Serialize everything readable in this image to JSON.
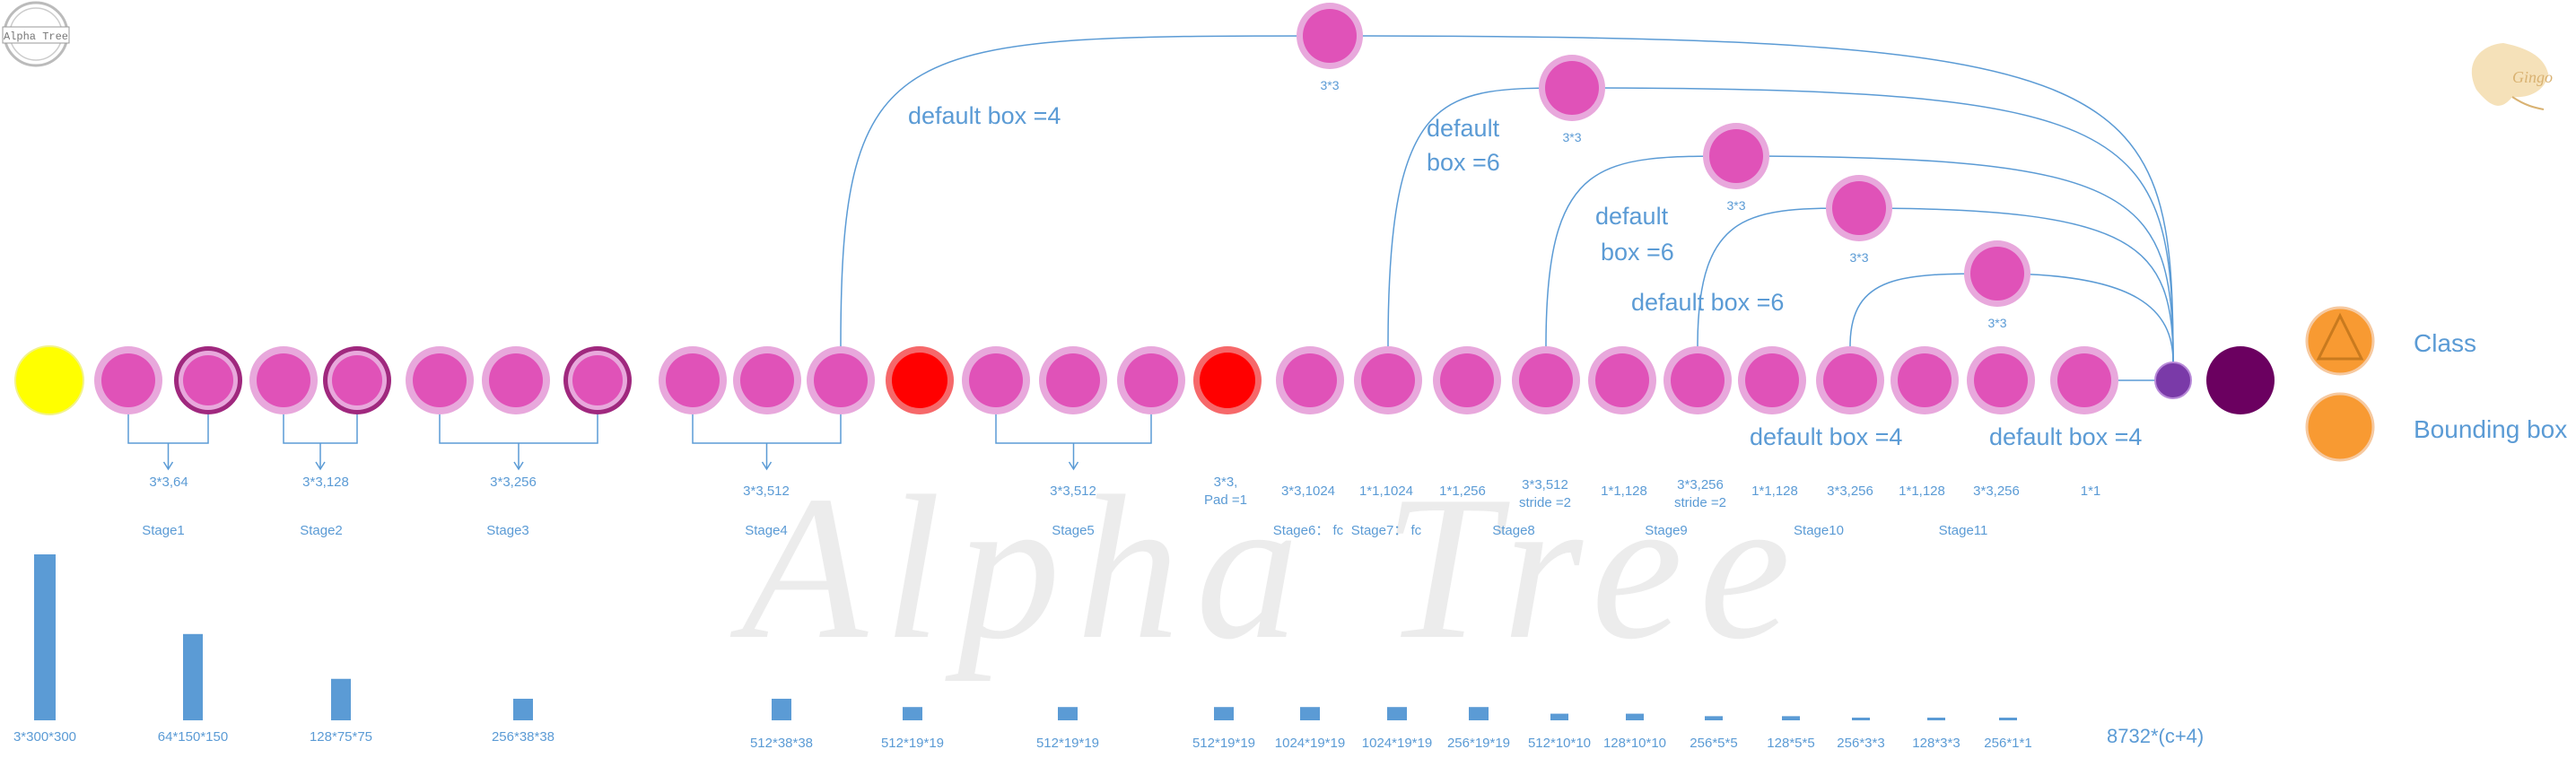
{
  "logo_left": {
    "text": "Alpha Tree"
  },
  "logo_right": {
    "text": "Gingo"
  },
  "watermark": "Alpha Tree",
  "legend": {
    "class_label": "Class",
    "bbox_label": "Bounding box",
    "class_color": "#f89a32",
    "bbox_color": "#f89a32"
  },
  "colors": {
    "input": "#ffff00",
    "conv": "#e052b8",
    "conv_ring": "#e8a8dc",
    "conv_dark_ring": "#a0287e",
    "pool": "#ff0000",
    "pool_ring": "#f6686a",
    "output_small": "#7a3aa8",
    "output_big": "#6b0060",
    "line": "#5b9bd5",
    "bar": "#5b9bd5"
  },
  "layers": {
    "row": [
      {
        "type": "input"
      },
      {
        "type": "conv"
      },
      {
        "type": "conv-dark"
      },
      {
        "type": "conv"
      },
      {
        "type": "conv-dark"
      },
      {
        "type": "conv"
      },
      {
        "type": "conv"
      },
      {
        "type": "conv-dark"
      },
      {
        "type": "conv"
      },
      {
        "type": "conv"
      },
      {
        "type": "conv"
      },
      {
        "type": "pool"
      },
      {
        "type": "conv"
      },
      {
        "type": "conv"
      },
      {
        "type": "conv"
      },
      {
        "type": "pool"
      },
      {
        "type": "conv"
      },
      {
        "type": "conv"
      },
      {
        "type": "conv"
      },
      {
        "type": "conv"
      },
      {
        "type": "conv"
      },
      {
        "type": "conv"
      },
      {
        "type": "conv"
      },
      {
        "type": "conv"
      },
      {
        "type": "conv"
      },
      {
        "type": "conv"
      },
      {
        "type": "conv"
      },
      {
        "type": "output-small"
      },
      {
        "type": "output-big"
      }
    ],
    "detectors": [
      {
        "label": "3*3"
      },
      {
        "label": "3*3"
      },
      {
        "label": "3*3"
      },
      {
        "label": "3*3"
      },
      {
        "label": "3*3"
      }
    ]
  },
  "annotations": {
    "box1": "default box =4",
    "box2_a": "default",
    "box2_b": "box =6",
    "box3_a": "default",
    "box3_b": "box =6",
    "box4": "default box =6",
    "box5": "default box =4",
    "box6": "default box =4"
  },
  "stage_info": [
    {
      "lines": [
        "3*3,64"
      ],
      "stage": "Stage1"
    },
    {
      "lines": [
        "3*3,128"
      ],
      "stage": "Stage2"
    },
    {
      "lines": [
        "3*3,256"
      ],
      "stage": "Stage3"
    },
    {
      "lines": [
        "3*3,512"
      ],
      "stage": "Stage4"
    },
    {
      "lines": [
        "3*3,512"
      ],
      "stage": "Stage5"
    },
    {
      "lines": [
        "3*3,",
        "Pad =1"
      ],
      "stage": ""
    },
    {
      "lines": [
        "3*3,1024"
      ],
      "stage": "Stage6： fc"
    },
    {
      "lines": [
        "1*1,1024"
      ],
      "stage": "Stage7： fc"
    },
    {
      "lines": [
        "1*1,256"
      ],
      "stage": ""
    },
    {
      "lines": [
        "3*3,512",
        "stride =2"
      ],
      "stage": "Stage8"
    },
    {
      "lines": [
        "1*1,128"
      ],
      "stage": ""
    },
    {
      "lines": [
        "3*3,256",
        "stride =2"
      ],
      "stage": "Stage9"
    },
    {
      "lines": [
        "1*1,128"
      ],
      "stage": ""
    },
    {
      "lines": [
        "3*3,256"
      ],
      "stage": "Stage10"
    },
    {
      "lines": [
        "1*1,128"
      ],
      "stage": ""
    },
    {
      "lines": [
        "3*3,256"
      ],
      "stage": "Stage11"
    },
    {
      "lines": [
        "1*1"
      ],
      "stage": ""
    }
  ],
  "feature_maps": [
    {
      "label": "3*300*300",
      "value": 1.0
    },
    {
      "label": "64*150*150",
      "value": 0.52
    },
    {
      "label": "128*75*75",
      "value": 0.25
    },
    {
      "label": "256*38*38",
      "value": 0.13
    },
    {
      "label": "512*38*38",
      "value": 0.13
    },
    {
      "label": "512*19*19",
      "value": 0.08
    },
    {
      "label": "512*19*19",
      "value": 0.08
    },
    {
      "label": "512*19*19",
      "value": 0.08
    },
    {
      "label": "1024*19*19",
      "value": 0.08
    },
    {
      "label": "1024*19*19",
      "value": 0.08
    },
    {
      "label": "256*19*19",
      "value": 0.08
    },
    {
      "label": "512*10*10",
      "value": 0.04
    },
    {
      "label": "128*10*10",
      "value": 0.04
    },
    {
      "label": "256*5*5",
      "value": 0.025
    },
    {
      "label": "128*5*5",
      "value": 0.025
    },
    {
      "label": "256*3*3",
      "value": 0.015
    },
    {
      "label": "128*3*3",
      "value": 0.015
    },
    {
      "label": "256*1*1",
      "value": 0.01
    }
  ],
  "final_output": "8732*(c+4)"
}
